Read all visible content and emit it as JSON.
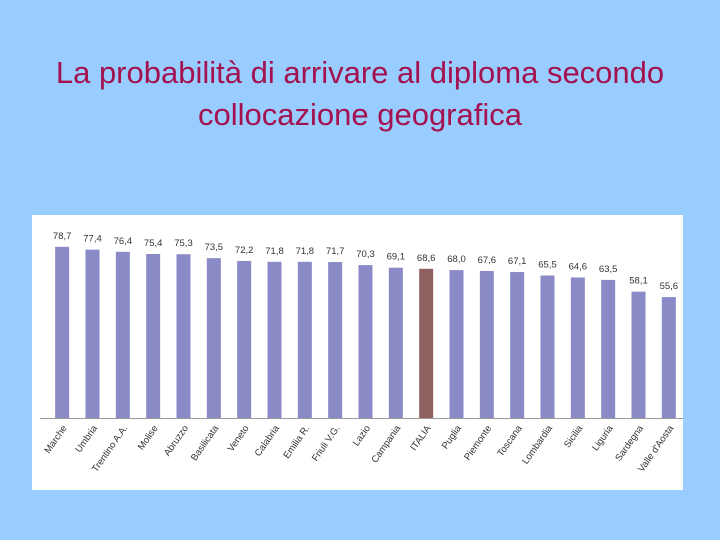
{
  "title": "La probabilità di arrivare al diploma secondo collocazione geografica",
  "chart_data": {
    "type": "bar",
    "categories": [
      "Marche",
      "Umbria",
      "Trentino A.A.",
      "Molise",
      "Abruzzo",
      "Basilicata",
      "Veneto",
      "Calabria",
      "Emilia R.",
      "Friuli V.G.",
      "Lazio",
      "Campania",
      "ITALIA",
      "Puglia",
      "Piemonte",
      "Toscana",
      "Lombardia",
      "Sicilia",
      "Liguria",
      "Sardegna",
      "Valle d'Aosta"
    ],
    "values": [
      78.7,
      77.4,
      76.4,
      75.4,
      75.3,
      73.5,
      72.2,
      71.8,
      71.8,
      71.7,
      70.3,
      69.1,
      68.6,
      68.0,
      67.6,
      67.1,
      65.5,
      64.6,
      63.5,
      58.1,
      55.6
    ],
    "value_labels": [
      "78,7",
      "77,4",
      "76,4",
      "75,4",
      "75,3",
      "73,5",
      "72,2",
      "71,8",
      "71,8",
      "71,7",
      "70,3",
      "69,1",
      "68,6",
      "68,0",
      "67,6",
      "67,1",
      "65,5",
      "64,6",
      "63,5",
      "58,1",
      "55,6"
    ],
    "colors": [
      "#8a8ac6",
      "#8a8ac6",
      "#8a8ac6",
      "#8a8ac6",
      "#8a8ac6",
      "#8a8ac6",
      "#8a8ac6",
      "#8a8ac6",
      "#8a8ac6",
      "#8a8ac6",
      "#8a8ac6",
      "#8a8ac6",
      "#8f6060",
      "#8a8ac6",
      "#8a8ac6",
      "#8a8ac6",
      "#8a8ac6",
      "#8a8ac6",
      "#8a8ac6",
      "#8a8ac6",
      "#8a8ac6"
    ],
    "ylim": [
      0,
      80
    ]
  }
}
